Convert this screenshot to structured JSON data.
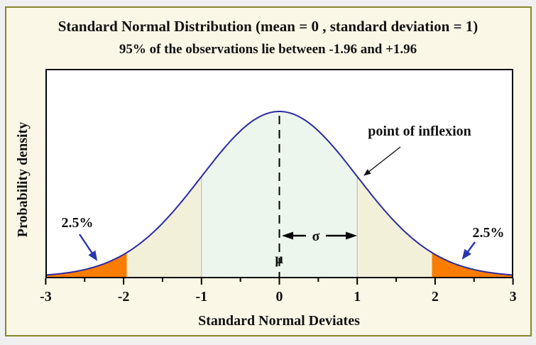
{
  "page": {
    "title": "Standard Normal Distribution (mean = 0 , standard deviation = 1)",
    "subtitle": "95% of the observations lie between -1.96 and +1.96",
    "panel_background": "#fbf7e6",
    "panel_border_color": "#87872c"
  },
  "chart_data": {
    "type": "area",
    "title": "Standard Normal Distribution (mean = 0 , standard deviation = 1)",
    "subtitle": "95% of the observations lie between -1.96 and +1.96",
    "xlabel": "Standard Normal Deviates",
    "ylabel": "Probability density",
    "xlim": [
      -3,
      3
    ],
    "x_ticks": [
      -3,
      -2,
      -1,
      0,
      1,
      2,
      3
    ],
    "x_tick_labels": [
      "-3",
      "-2",
      "-1",
      "0",
      "1",
      "2",
      "3"
    ],
    "x_minor_ticks": [
      -2.5,
      -1.5,
      -0.5,
      0.5,
      1.5,
      2.5
    ],
    "grid": false,
    "distribution": {
      "mean": 0,
      "sd": 1,
      "peak_density": 0.3989
    },
    "curve_points": [
      {
        "x": -3,
        "density": 0.0044
      },
      {
        "x": -2,
        "density": 0.054
      },
      {
        "x": -1.96,
        "density": 0.0584
      },
      {
        "x": -1,
        "density": 0.242
      },
      {
        "x": 0,
        "density": 0.3989
      },
      {
        "x": 1,
        "density": 0.242
      },
      {
        "x": 1.96,
        "density": 0.0584
      },
      {
        "x": 2,
        "density": 0.054
      },
      {
        "x": 3,
        "density": 0.0044
      }
    ],
    "regions": [
      {
        "from": -3,
        "to": -1.96,
        "color": "#fa7d00",
        "area_pct": "2.5%"
      },
      {
        "from": -1.96,
        "to": -1,
        "color": "#f3f0da",
        "area_pct": ""
      },
      {
        "from": -1,
        "to": 1,
        "color": "#edf6ec",
        "area_pct": ""
      },
      {
        "from": 1,
        "to": 1.96,
        "color": "#f3f0da",
        "area_pct": ""
      },
      {
        "from": 1.96,
        "to": 3,
        "color": "#fa7d00",
        "area_pct": "2.5%"
      }
    ],
    "boundary_lines_x": [
      -1,
      1
    ],
    "mean_line_x": 0,
    "curve_color": "#2a2aa4",
    "annotations": {
      "mu_label": "μ",
      "sigma_label": "σ",
      "inflexion_label": "point of inflexion",
      "left_tail_label": "2.5%",
      "right_tail_label": "2.5%",
      "tail_label_color": "#fa7d00",
      "tail_arrow_color": "#2b35b0",
      "inflexion_arrow_color": "#111111"
    }
  }
}
